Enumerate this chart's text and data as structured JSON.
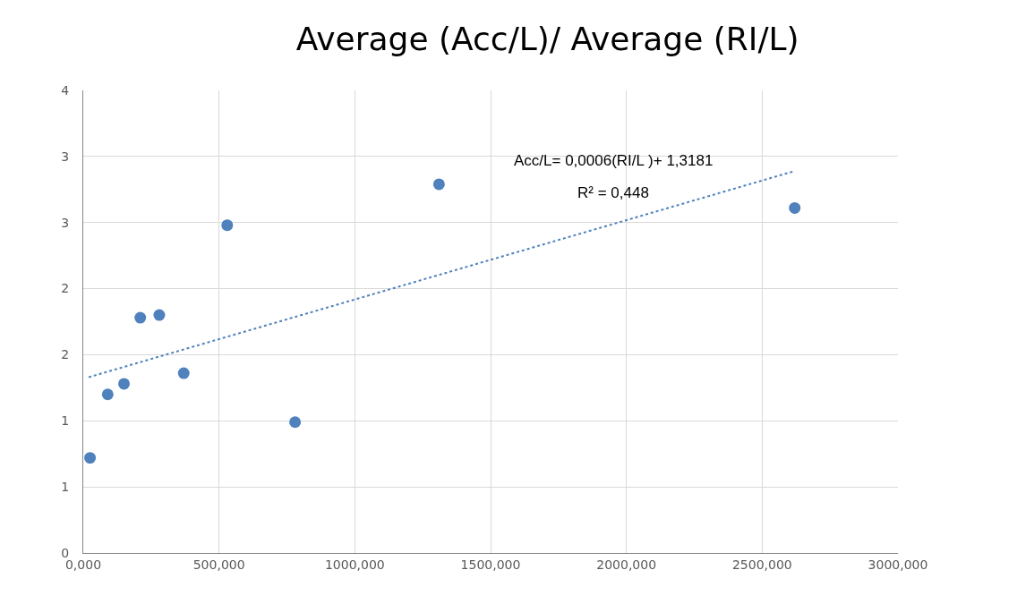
{
  "chart_data": {
    "type": "scatter",
    "title": "Average (Acc/L)/ Average (RI/L)",
    "x": [
      25,
      90,
      150,
      210,
      280,
      370,
      530,
      780,
      1310,
      2620
    ],
    "series": [
      {
        "color": "#4f81bd",
        "marker": "circle",
        "values": [
          0.72,
          1.2,
          1.28,
          1.78,
          1.8,
          1.36,
          2.48,
          0.99,
          2.79,
          2.61
        ]
      },
      {
        "type": "line",
        "color": "#4f81bd",
        "line_style": "dotted",
        "marker": "none",
        "x": [
          20,
          2620
        ],
        "values": [
          1.33,
          2.89
        ]
      }
    ],
    "annotations": [
      "Acc/L= 0,0006(RI/L )+ 1,3181",
      "R² = 0,448"
    ],
    "xlim": [
      0,
      3000
    ],
    "xticks": [
      {
        "value": 0,
        "label": "0,000"
      },
      {
        "value": 500,
        "label": "500,000"
      },
      {
        "value": 1000,
        "label": "1000,000"
      },
      {
        "value": 1500,
        "label": "1500,000"
      },
      {
        "value": 2000,
        "label": "2000,000"
      },
      {
        "value": 2500,
        "label": "2500,000"
      },
      {
        "value": 3000,
        "label": "3000,000"
      }
    ],
    "ylim": [
      0,
      3.5
    ],
    "yticks": [
      {
        "value": 0,
        "label": "0"
      },
      {
        "value": 0.5,
        "label": "1"
      },
      {
        "value": 1,
        "label": "1"
      },
      {
        "value": 1.5,
        "label": "2"
      },
      {
        "value": 2,
        "label": "2"
      },
      {
        "value": 2.5,
        "label": "3"
      },
      {
        "value": 3,
        "label": "3"
      },
      {
        "value": 3.5,
        "label": "4"
      }
    ],
    "grid": true
  }
}
